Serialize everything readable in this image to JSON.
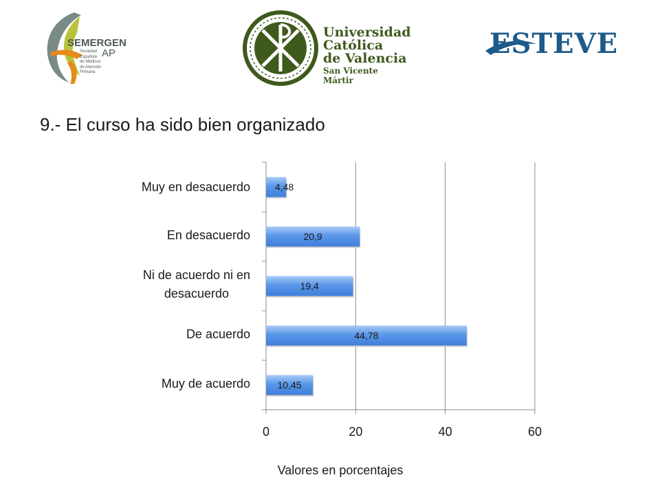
{
  "logos": {
    "semergen": {
      "name": "SEMERGEN",
      "suffix": "AP",
      "lines": [
        "Sociedad",
        "Española",
        "de Médicos",
        "de Atención",
        "Primaria"
      ]
    },
    "ucv": {
      "lines": [
        "Universidad",
        "Católica",
        "de Valencia"
      ],
      "subtitle": "San Vicente Mártir"
    },
    "esteve": {
      "name": "ESTEVE"
    }
  },
  "colors": {
    "bar": "#4f8ee6",
    "bar_light": "#a9cbf5",
    "grid": "#8c8c8c",
    "text": "#1a1a1a",
    "ucv_green": "#3f5a1d",
    "esteve_blue": "#1c5a8a"
  },
  "chart_data": {
    "type": "bar",
    "orientation": "horizontal",
    "title": "9.- El curso ha sido bien organizado",
    "xlabel": "Valores en porcentajes",
    "ylabel": "",
    "categories": [
      "Muy en desacuerdo",
      "En desacuerdo",
      "Ni de acuerdo ni en desacuerdo",
      "De acuerdo",
      "Muy de acuerdo"
    ],
    "category_lines": [
      [
        "Muy en desacuerdo"
      ],
      [
        "En desacuerdo"
      ],
      [
        "Ni de acuerdo ni en",
        "desacuerdo"
      ],
      [
        "De acuerdo"
      ],
      [
        "Muy de acuerdo"
      ]
    ],
    "values": [
      4.48,
      20.9,
      19.4,
      44.78,
      10.45
    ],
    "data_labels": [
      "4,48",
      "20,9",
      "19,4",
      "44,78",
      "10,45"
    ],
    "xlim": [
      0,
      60
    ],
    "xticks": [
      0,
      20,
      40,
      60
    ],
    "grid": true,
    "legend": "none"
  }
}
